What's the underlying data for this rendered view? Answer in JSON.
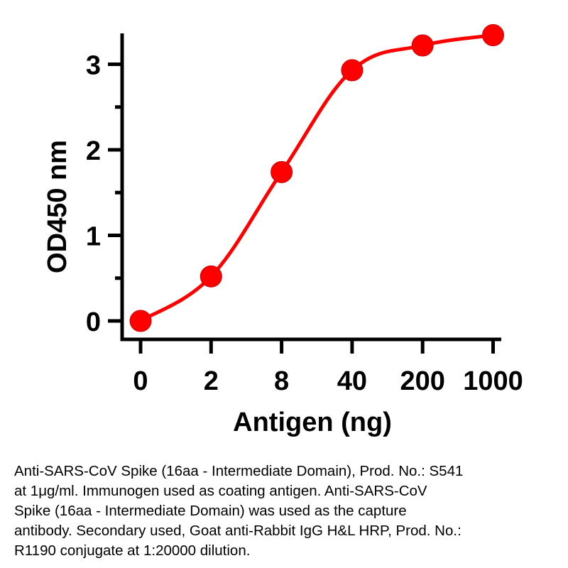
{
  "chart_data": {
    "type": "line",
    "categories": [
      "0",
      "2",
      "8",
      "40",
      "200",
      "1000"
    ],
    "series": [
      {
        "values": [
          0.0,
          0.52,
          1.74,
          2.93,
          3.22,
          3.34
        ],
        "color": "#ff0000"
      }
    ],
    "xlabel": "Antigen (ng)",
    "ylabel": "OD450 nm",
    "yticks": [
      "0",
      "1",
      "2",
      "3"
    ],
    "ylim": [
      0,
      3.5
    ],
    "grid": false,
    "marker": "circle",
    "smooth": true
  },
  "caption": "Anti-SARS-CoV Spike (16aa - Intermediate Domain), Prod. No.: S541\nat 1μg/ml. Immunogen used as coating antigen. Anti-SARS-CoV\nSpike (16aa - Intermediate Domain) was used as the capture\nantibody. Secondary used, Goat anti-Rabbit IgG H&L HRP, Prod. No.:\nR1190 conjugate at 1:20000 dilution."
}
